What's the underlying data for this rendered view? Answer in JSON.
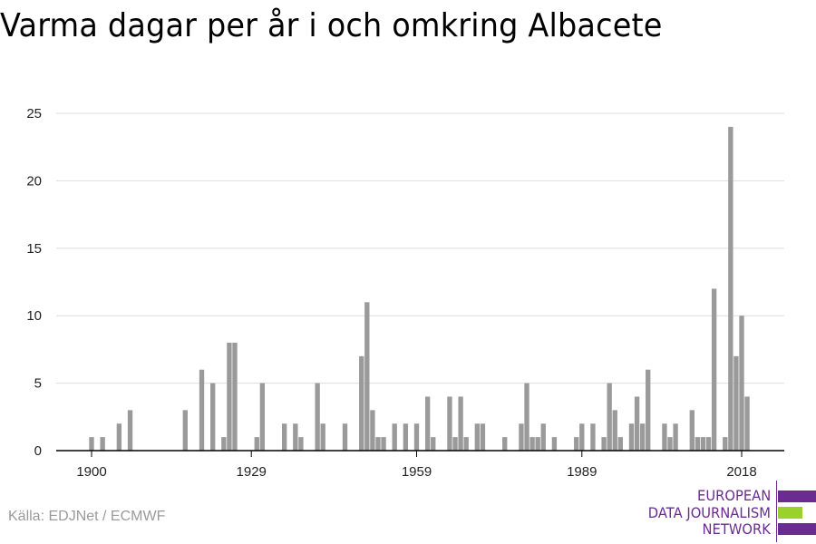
{
  "title": "Varma dagar per år i och omkring Albacete",
  "source": "Källa: EDJNet / ECMWF",
  "logo": {
    "lines": [
      "EUROPEAN",
      "DATA JOURNALISM",
      "NETWORK"
    ],
    "bar_colors": [
      "#6a2c91",
      "#9ad22c",
      "#6a2c91"
    ],
    "text_color": "#6a2c91"
  },
  "colors": {
    "bar": "#9a9a9a",
    "grid": "#dddddd",
    "axis": "#000000",
    "tick_label": "#222222"
  },
  "chart_data": {
    "type": "bar",
    "title": "Varma dagar per år i och omkring Albacete",
    "xlabel": "",
    "ylabel": "",
    "x_range": [
      1900,
      2020
    ],
    "ylim": [
      0,
      25
    ],
    "yticks": [
      0,
      5,
      10,
      15,
      20,
      25
    ],
    "xticks": [
      1900,
      1929,
      1959,
      1989,
      2018
    ],
    "grid": true,
    "legend": "none",
    "values": [
      {
        "x": 1900,
        "y": 1
      },
      {
        "x": 1902,
        "y": 1
      },
      {
        "x": 1905,
        "y": 2
      },
      {
        "x": 1907,
        "y": 3
      },
      {
        "x": 1917,
        "y": 3
      },
      {
        "x": 1920,
        "y": 6
      },
      {
        "x": 1922,
        "y": 5
      },
      {
        "x": 1924,
        "y": 1
      },
      {
        "x": 1925,
        "y": 8
      },
      {
        "x": 1926,
        "y": 8
      },
      {
        "x": 1930,
        "y": 1
      },
      {
        "x": 1931,
        "y": 5
      },
      {
        "x": 1935,
        "y": 2
      },
      {
        "x": 1937,
        "y": 2
      },
      {
        "x": 1938,
        "y": 1
      },
      {
        "x": 1941,
        "y": 5
      },
      {
        "x": 1942,
        "y": 2
      },
      {
        "x": 1946,
        "y": 2
      },
      {
        "x": 1949,
        "y": 7
      },
      {
        "x": 1950,
        "y": 11
      },
      {
        "x": 1951,
        "y": 3
      },
      {
        "x": 1952,
        "y": 1
      },
      {
        "x": 1953,
        "y": 1
      },
      {
        "x": 1955,
        "y": 2
      },
      {
        "x": 1957,
        "y": 2
      },
      {
        "x": 1959,
        "y": 2
      },
      {
        "x": 1961,
        "y": 4
      },
      {
        "x": 1962,
        "y": 1
      },
      {
        "x": 1965,
        "y": 4
      },
      {
        "x": 1966,
        "y": 1
      },
      {
        "x": 1967,
        "y": 4
      },
      {
        "x": 1968,
        "y": 1
      },
      {
        "x": 1970,
        "y": 2
      },
      {
        "x": 1971,
        "y": 2
      },
      {
        "x": 1975,
        "y": 1
      },
      {
        "x": 1978,
        "y": 2
      },
      {
        "x": 1979,
        "y": 5
      },
      {
        "x": 1980,
        "y": 1
      },
      {
        "x": 1981,
        "y": 1
      },
      {
        "x": 1982,
        "y": 2
      },
      {
        "x": 1984,
        "y": 1
      },
      {
        "x": 1988,
        "y": 1
      },
      {
        "x": 1989,
        "y": 2
      },
      {
        "x": 1991,
        "y": 2
      },
      {
        "x": 1993,
        "y": 1
      },
      {
        "x": 1994,
        "y": 5
      },
      {
        "x": 1995,
        "y": 3
      },
      {
        "x": 1996,
        "y": 1
      },
      {
        "x": 1998,
        "y": 2
      },
      {
        "x": 1999,
        "y": 4
      },
      {
        "x": 2000,
        "y": 2
      },
      {
        "x": 2001,
        "y": 6
      },
      {
        "x": 2004,
        "y": 2
      },
      {
        "x": 2005,
        "y": 1
      },
      {
        "x": 2006,
        "y": 2
      },
      {
        "x": 2009,
        "y": 3
      },
      {
        "x": 2010,
        "y": 1
      },
      {
        "x": 2011,
        "y": 1
      },
      {
        "x": 2012,
        "y": 1
      },
      {
        "x": 2013,
        "y": 12
      },
      {
        "x": 2015,
        "y": 1
      },
      {
        "x": 2016,
        "y": 24
      },
      {
        "x": 2017,
        "y": 7
      },
      {
        "x": 2018,
        "y": 10
      },
      {
        "x": 2019,
        "y": 4
      }
    ]
  }
}
